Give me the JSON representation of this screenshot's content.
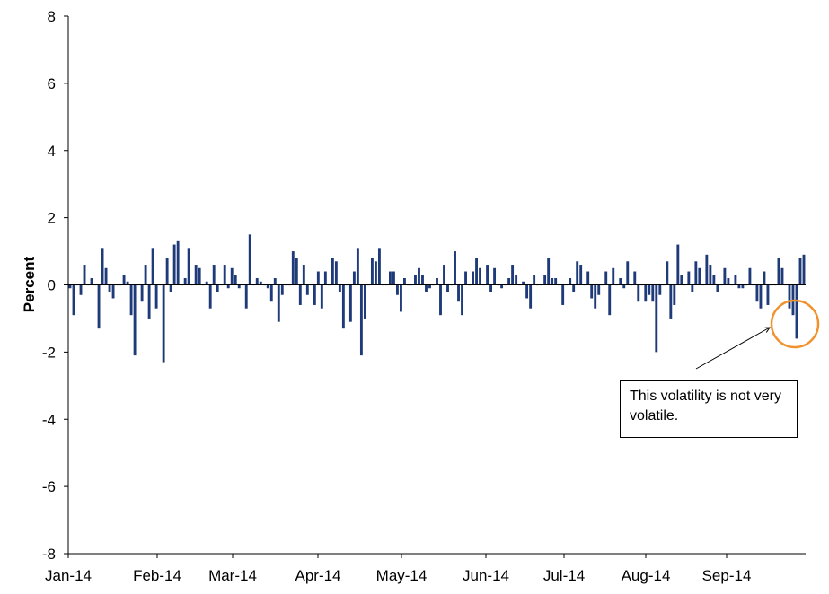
{
  "chart_data": {
    "type": "bar",
    "title": "",
    "xlabel": "",
    "ylabel": "Percent",
    "ylim": [
      -8,
      8
    ],
    "yticks": [
      "8",
      "6",
      "4",
      "2",
      "0",
      "-2",
      "-4",
      "-6",
      "-8"
    ],
    "xticks": [
      "Jan-14",
      "Feb-14",
      "Mar-14",
      "Apr-14",
      "May-14",
      "Jun-14",
      "Jul-14",
      "Aug-14",
      "Sep-14"
    ],
    "grid": false,
    "bar_color": "#1f3a78",
    "values": [
      -0.1,
      -0.9,
      0.0,
      -0.3,
      0.6,
      0.0,
      0.2,
      0.0,
      -1.3,
      1.1,
      0.5,
      -0.2,
      -0.4,
      0.0,
      0.0,
      0.3,
      0.1,
      -0.9,
      -2.1,
      0.0,
      -0.5,
      0.6,
      -1.0,
      1.1,
      -0.7,
      0.0,
      -2.3,
      0.8,
      -0.2,
      1.2,
      1.3,
      0.0,
      0.2,
      1.1,
      0.0,
      0.6,
      0.5,
      0.0,
      0.1,
      -0.7,
      0.6,
      -0.2,
      0.0,
      0.6,
      -0.1,
      0.5,
      0.3,
      -0.1,
      0.0,
      -0.7,
      1.5,
      0.0,
      0.2,
      0.1,
      0.0,
      -0.1,
      -0.5,
      0.2,
      -1.1,
      -0.3,
      0.0,
      0.0,
      1.0,
      0.8,
      -0.6,
      0.6,
      -0.3,
      0.0,
      -0.6,
      0.4,
      -0.7,
      0.4,
      0.0,
      0.8,
      0.7,
      -0.2,
      -1.3,
      0.0,
      -1.1,
      0.4,
      1.1,
      -2.1,
      -1.0,
      0.0,
      0.8,
      0.7,
      1.1,
      0.0,
      0.0,
      0.4,
      0.4,
      -0.3,
      -0.8,
      0.2,
      0.0,
      0.0,
      0.3,
      0.5,
      0.3,
      -0.2,
      -0.1,
      0.0,
      0.2,
      -0.9,
      0.6,
      -0.2,
      0.0,
      1.0,
      -0.5,
      -0.9,
      0.4,
      0.0,
      0.4,
      0.8,
      0.5,
      0.0,
      0.6,
      -0.2,
      0.5,
      0.0,
      -0.1,
      0.0,
      0.2,
      0.6,
      0.3,
      0.0,
      0.1,
      -0.4,
      -0.7,
      0.3,
      0.0,
      0.0,
      0.3,
      0.8,
      0.2,
      0.2,
      0.0,
      -0.6,
      0.0,
      0.2,
      -0.2,
      0.7,
      0.6,
      0.0,
      0.4,
      -0.4,
      -0.7,
      -0.3,
      0.0,
      0.4,
      -0.9,
      0.5,
      0.0,
      0.2,
      -0.1,
      0.7,
      0.0,
      0.4,
      -0.5,
      0.0,
      -0.5,
      -0.3,
      -0.5,
      -2.0,
      -0.3,
      0.0,
      0.7,
      -1.0,
      -0.6,
      1.2,
      0.3,
      0.0,
      0.4,
      -0.2,
      0.7,
      0.5,
      0.0,
      0.9,
      0.6,
      0.3,
      -0.2,
      0.0,
      0.5,
      0.2,
      0.0,
      0.3,
      -0.1,
      -0.1,
      0.0,
      0.5,
      0.0,
      -0.5,
      -0.7,
      0.4,
      -0.6,
      0.0,
      0.0,
      0.8,
      0.5,
      0.0,
      -0.7,
      -0.9,
      -1.6,
      0.8,
      0.9
    ]
  },
  "annotation": {
    "text": "This volatility is not very volatile.",
    "circle_color": "#f0922e"
  }
}
